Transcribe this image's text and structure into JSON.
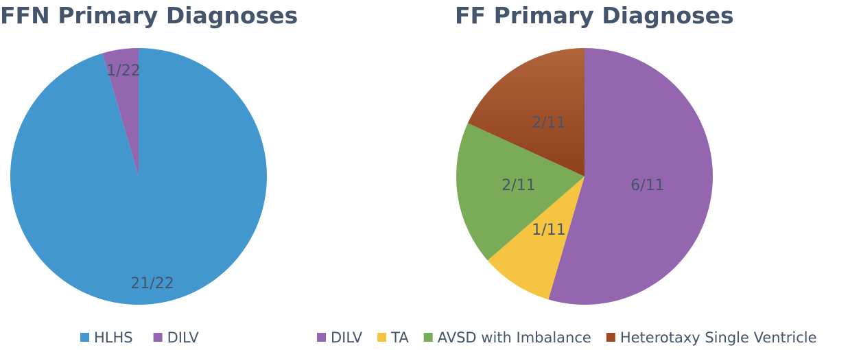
{
  "chart_data": [
    {
      "type": "pie",
      "title": "FFN Primary Diagnoses",
      "categories": [
        "HLHS",
        "DILV"
      ],
      "values": [
        21,
        1
      ],
      "labels": [
        "21/22",
        "1/22"
      ],
      "colors": [
        "#4297cf",
        "#9466b0"
      ],
      "legend_position": "bottom"
    },
    {
      "type": "pie",
      "title": "FF Primary Diagnoses",
      "categories": [
        "DILV",
        "TA",
        "AVSD with Imbalance",
        "Heterotaxy Single Ventricle"
      ],
      "values": [
        6,
        1,
        2,
        2
      ],
      "labels": [
        "6/11",
        "1/11",
        "2/11",
        "2/11"
      ],
      "colors": [
        "#9466b0",
        "#f5c440",
        "#7aab56",
        "#9e4b24"
      ],
      "legend_position": "bottom"
    }
  ]
}
